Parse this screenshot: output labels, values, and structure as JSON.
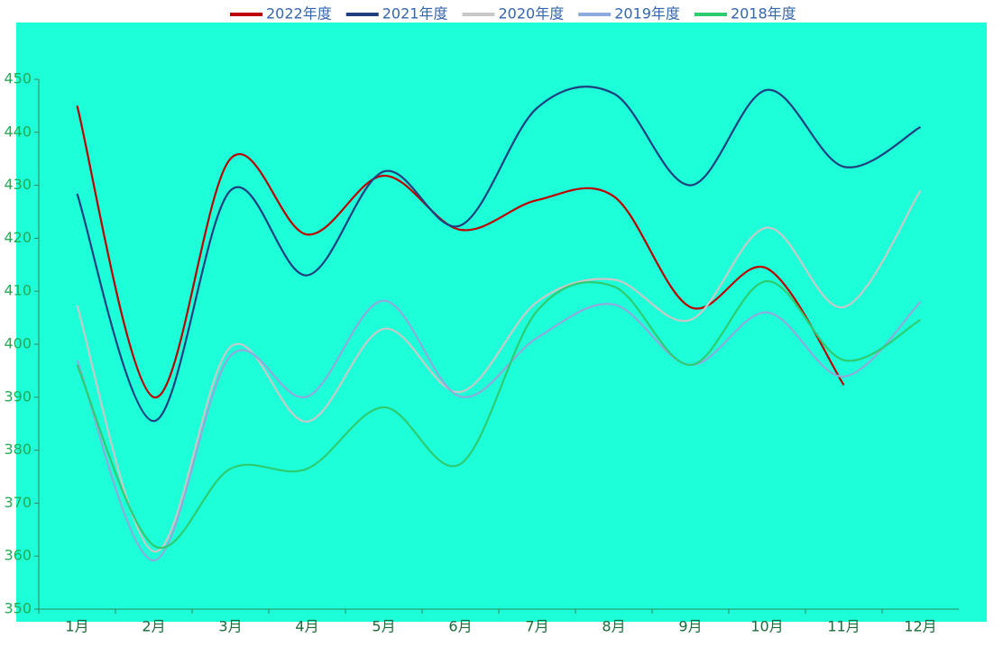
{
  "chart_data": {
    "type": "line",
    "categories": [
      "1月",
      "2月",
      "3月",
      "4月",
      "5月",
      "6月",
      "7月",
      "8月",
      "9月",
      "10月",
      "11月",
      "12月"
    ],
    "series": [
      {
        "name": "2022年度",
        "color": "#c00000",
        "values": [
          445,
          390,
          435,
          420.7,
          431.8,
          421.6,
          427.2,
          427.9,
          407,
          414.3,
          392.3,
          null
        ]
      },
      {
        "name": "2021年度",
        "color": "#1f3f7f",
        "values": [
          428.4,
          385.5,
          429,
          413,
          432.6,
          422.4,
          444.6,
          447.3,
          430,
          448,
          433.5,
          441
        ]
      },
      {
        "name": "2020年度",
        "color": "#c8c8c8",
        "values": [
          407.3,
          360.9,
          399.5,
          385.4,
          402.9,
          391,
          408,
          412.2,
          404.6,
          422,
          407,
          429
        ]
      },
      {
        "name": "2019年度",
        "color": "#8ea9db",
        "values": [
          397,
          359.2,
          397.8,
          390.1,
          408.2,
          390.1,
          401.2,
          407.5,
          396.1,
          406,
          393.9,
          408
        ]
      },
      {
        "name": "2018年度",
        "color": "#2ecc71",
        "values": [
          396.1,
          362,
          376.5,
          376.5,
          388.1,
          377.4,
          406.3,
          410.9,
          396.1,
          411.9,
          397,
          404.6
        ]
      }
    ],
    "ylim": [
      350,
      450
    ],
    "yticks": [
      350,
      360,
      370,
      380,
      390,
      400,
      410,
      420,
      430,
      440,
      450
    ]
  }
}
